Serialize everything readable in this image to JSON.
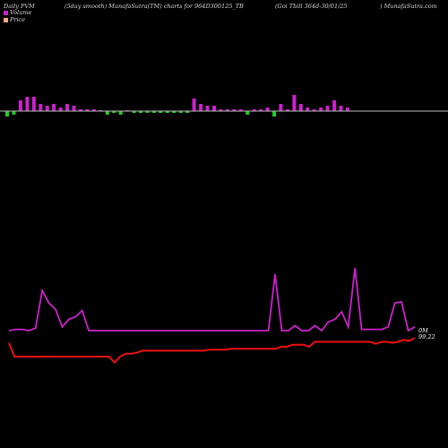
{
  "header": {
    "left": "Daily PVM",
    "smooth": "(5day smooth) MunafaSutra(TM) charts for 964D300125_TB",
    "govt": "(Goi  Tbill 364d-30/01/25",
    "right": ") MunafaSutra.com"
  },
  "legend": {
    "volume_label": "Volume",
    "price_label": "Price"
  },
  "colors": {
    "background": "#000000",
    "volume_bar_up": "#cc22cc",
    "volume_bar_down": "#22cc22",
    "volume_line": "#cc22cc",
    "price_line": "#ee1111",
    "baseline": "#bbbbbb",
    "legend_volume_swatch": "#cc22cc",
    "legend_price_swatch": "#ffaa88"
  },
  "chart_data": [
    {
      "type": "bar",
      "title": "Volume bars",
      "values": [
        -3,
        -2,
        6,
        8,
        8,
        4,
        3,
        4,
        2,
        4,
        3,
        1,
        1,
        1,
        0,
        -2,
        -1,
        -2,
        0,
        -1,
        -1,
        -1,
        -1,
        -1,
        -1,
        -1,
        -1,
        -1,
        7,
        4,
        3,
        3,
        1,
        1,
        1,
        1,
        -2,
        1,
        1,
        2,
        -3,
        4,
        1,
        9,
        4,
        2,
        1,
        2,
        3,
        6,
        3,
        2
      ]
    },
    {
      "type": "line",
      "title": "Volume smooth",
      "values": [
        15,
        16,
        16,
        15,
        17,
        47,
        37,
        32,
        18,
        24,
        26,
        31,
        15,
        15,
        15,
        15,
        15,
        15,
        15,
        15,
        15,
        15,
        15,
        15,
        15,
        15,
        15,
        15,
        15,
        15,
        15,
        15,
        15,
        15,
        15,
        15,
        15,
        15,
        15,
        15,
        60,
        15,
        15,
        19,
        15,
        15,
        19,
        15,
        22,
        24,
        30,
        18,
        65,
        16,
        16,
        16,
        16,
        18,
        37,
        38,
        15,
        18
      ]
    },
    {
      "type": "line",
      "title": "Price",
      "values": [
        14,
        0,
        0,
        0,
        0,
        -0.3,
        0,
        0,
        0,
        0,
        0,
        0,
        0,
        0,
        0,
        0,
        0,
        0,
        0,
        -6,
        0,
        3,
        3,
        4,
        6,
        6,
        6,
        6,
        6,
        6,
        6,
        6,
        6,
        6,
        6,
        6,
        7,
        7,
        7,
        7,
        8,
        8,
        8,
        8,
        8,
        8,
        8,
        8,
        8,
        10,
        10,
        12,
        12,
        12,
        10,
        15,
        15,
        15,
        15,
        15,
        15,
        15,
        15,
        15,
        15,
        15,
        13,
        15,
        15,
        14,
        15,
        17,
        16,
        19
      ]
    }
  ],
  "end_labels": {
    "volume": "0M",
    "price": "99.22"
  }
}
